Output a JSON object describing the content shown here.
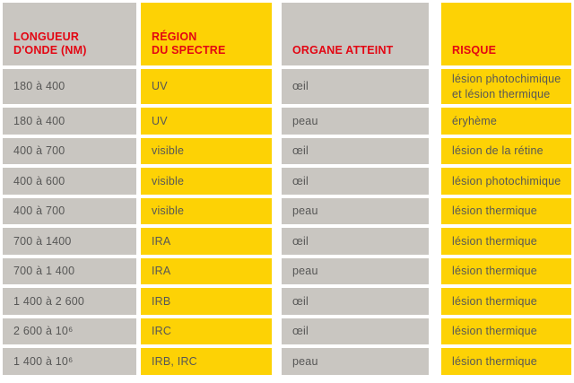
{
  "colors": {
    "yellow": "#fdd205",
    "gray": "#c9c6c1",
    "header_red": "#e30613",
    "body_text": "#575756",
    "background": "#ffffff"
  },
  "table": {
    "columns": [
      {
        "label": "LONGUEUR\nD'ONDE (nm)"
      },
      {
        "label": "RÉGION\nDU SPECTRE"
      },
      {
        "label": "ORGANE ATTEINT"
      },
      {
        "label": "RISQUE"
      }
    ],
    "rows": [
      {
        "longueur_onde": "180 à 400",
        "region_spectre": "UV",
        "organe_atteint": "œil",
        "risque": "lésion photochimique et lésion thermique"
      },
      {
        "longueur_onde": "180 à 400",
        "region_spectre": "UV",
        "organe_atteint": "peau",
        "risque": "éryhème"
      },
      {
        "longueur_onde": "400 à 700",
        "region_spectre": "visible",
        "organe_atteint": "œil",
        "risque": "lésion de la rétine"
      },
      {
        "longueur_onde": "400 à 600",
        "region_spectre": "visible",
        "organe_atteint": "œil",
        "risque": "lésion photochimique"
      },
      {
        "longueur_onde": "400 à 700",
        "region_spectre": "visible",
        "organe_atteint": "peau",
        "risque": "lésion thermique"
      },
      {
        "longueur_onde": "700 à 1400",
        "region_spectre": "IRA",
        "organe_atteint": "œil",
        "risque": "lésion thermique"
      },
      {
        "longueur_onde": "700 à 1 400",
        "region_spectre": "IRA",
        "organe_atteint": "peau",
        "risque": "lésion thermique"
      },
      {
        "longueur_onde": "1 400 à 2 600",
        "region_spectre": "IRB",
        "organe_atteint": "œil",
        "risque": "lésion thermique"
      },
      {
        "longueur_onde": "2 600 à 10⁶",
        "region_spectre": "IRC",
        "organe_atteint": "œil",
        "risque": "lésion thermique"
      },
      {
        "longueur_onde": "1 400 à 10⁶",
        "region_spectre": "IRB, IRC",
        "organe_atteint": "peau",
        "risque": "lésion thermique"
      }
    ]
  }
}
